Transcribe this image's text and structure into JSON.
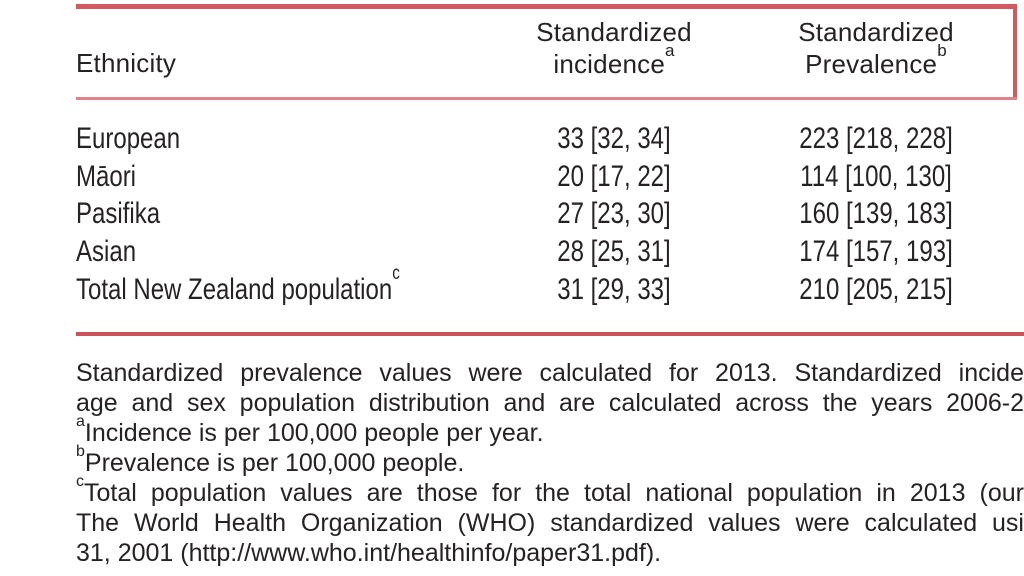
{
  "colors": {
    "rule_red": "#d4595e",
    "rule_mid_red": "#df8488",
    "text": "#262224",
    "background": "#ffffff"
  },
  "table": {
    "header": {
      "ethnicity": "Ethnicity",
      "incidence": {
        "line1": "Standardized",
        "line2": "incidence",
        "sup": "a"
      },
      "prevalence": {
        "line1": "Standardized",
        "line2": "Prevalence",
        "sup": "b"
      }
    },
    "rows": [
      {
        "ethnicity": "European",
        "sup": "",
        "incidence": "33 [32, 34]",
        "prevalence": "223 [218, 228]"
      },
      {
        "ethnicity": "Māori",
        "sup": "",
        "incidence": "20 [17, 22]",
        "prevalence": "114 [100, 130]"
      },
      {
        "ethnicity": "Pasifika",
        "sup": "",
        "incidence": "27 [23, 30]",
        "prevalence": "160 [139, 183]"
      },
      {
        "ethnicity": "Asian",
        "sup": "",
        "incidence": "28 [25, 31]",
        "prevalence": "174 [157, 193]"
      },
      {
        "ethnicity": "Total New Zealand population",
        "sup": "c",
        "incidence": "31 [29, 33]",
        "prevalence": "210 [205, 215]"
      }
    ]
  },
  "footnotes": {
    "lines": [
      {
        "sup": "",
        "text": "Standardized prevalence values were calculated for 2013. Standardized incide"
      },
      {
        "sup": "",
        "text": "age and sex population distribution and are calculated across the years 2006-2"
      },
      {
        "sup": "a",
        "text": "Incidence is per 100,000 people per year."
      },
      {
        "sup": "b",
        "text": "Prevalence is per 100,000 people."
      },
      {
        "sup": "c",
        "text": "Total population values are those for the total national population in 2013 (our"
      },
      {
        "sup": "",
        "text": "The World Health Organization (WHO) standardized values were calculated usi"
      },
      {
        "sup": "",
        "text": "31, 2001 (http://www.who.int/healthinfo/paper31.pdf)."
      }
    ]
  }
}
